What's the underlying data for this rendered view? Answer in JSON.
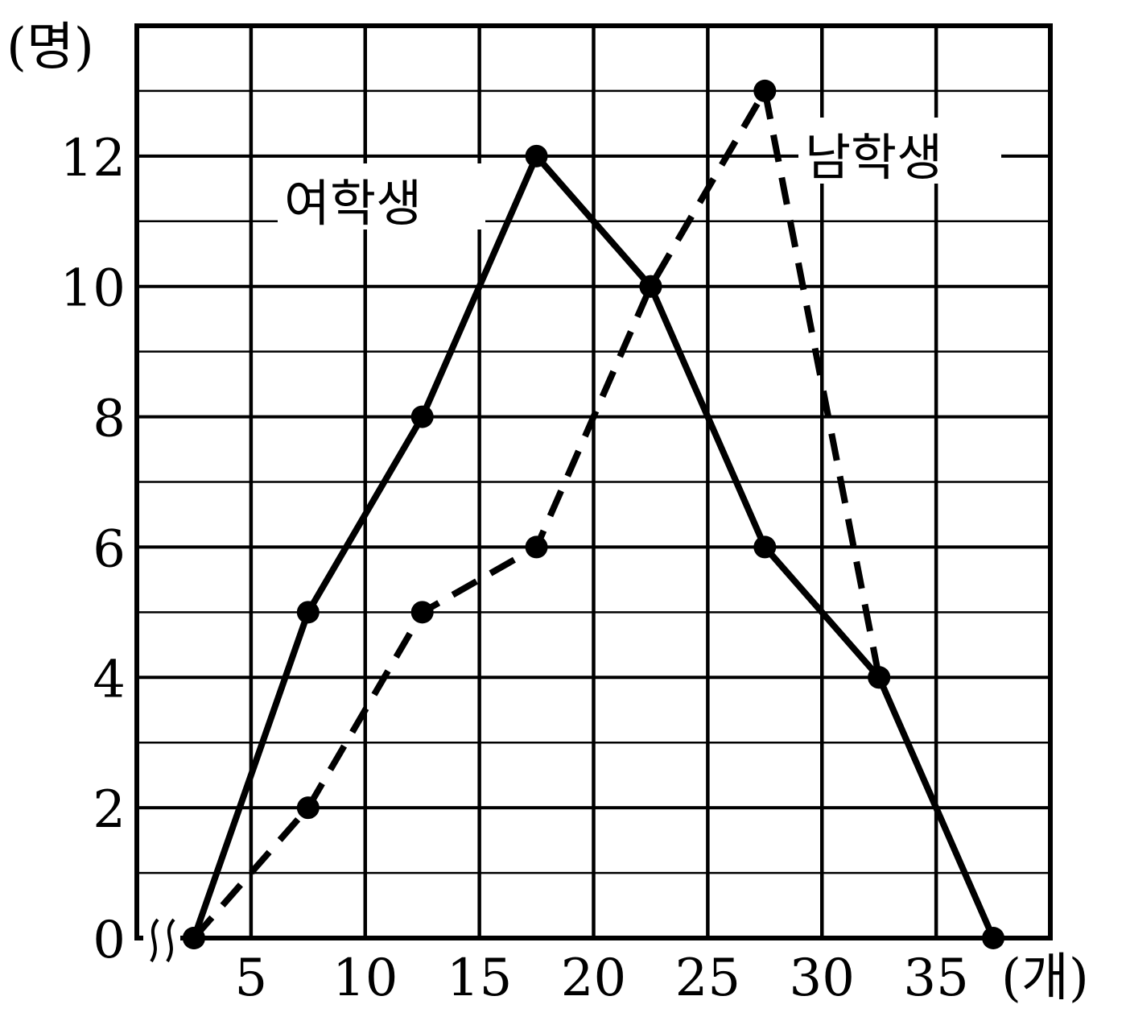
{
  "chart_data": {
    "type": "line",
    "title": "",
    "xlabel": "(개)",
    "ylabel": "(명)",
    "x": [
      2.5,
      7.5,
      12.5,
      17.5,
      22.5,
      27.5,
      32.5,
      37.5
    ],
    "xlim": [
      0,
      40
    ],
    "ylim": [
      0,
      14
    ],
    "x_ticks": [
      5,
      10,
      15,
      20,
      25,
      30,
      35
    ],
    "y_ticks": [
      0,
      2,
      4,
      6,
      8,
      10,
      12
    ],
    "x_tick_labels": [
      "5",
      "10",
      "15",
      "20",
      "25",
      "30",
      "35"
    ],
    "y_tick_labels": [
      "0",
      "2",
      "4",
      "6",
      "8",
      "10",
      "12"
    ],
    "grid": true,
    "axis_break": true,
    "series": [
      {
        "name": "여학생",
        "style": "solid",
        "color": "#000000",
        "x": [
          2.5,
          7.5,
          12.5,
          17.5,
          22.5,
          27.5,
          32.5,
          37.5
        ],
        "y": [
          0,
          5,
          8,
          12,
          10,
          6,
          4,
          0
        ]
      },
      {
        "name": "남학생",
        "style": "dashed",
        "color": "#000000",
        "x": [
          2.5,
          7.5,
          12.5,
          17.5,
          22.5,
          27.5,
          32.5
        ],
        "y": [
          0,
          2,
          5,
          6,
          10,
          13,
          4
        ]
      }
    ]
  }
}
